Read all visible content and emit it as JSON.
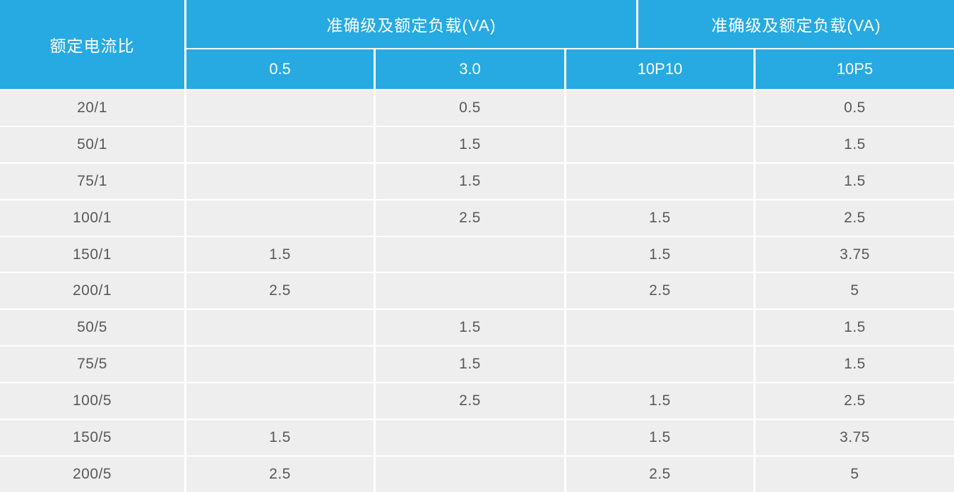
{
  "table": {
    "corner_header": "额定电流比",
    "group_headers": [
      {
        "label": "准确级及额定负载(VA)"
      },
      {
        "label": "准确级及额定负载(VA)"
      }
    ],
    "sub_headers": [
      "0.5",
      "3.0",
      "10P10",
      "10P5"
    ],
    "columns": [
      "ratio",
      "c05",
      "c30",
      "c10p10",
      "c10p5"
    ],
    "rows": [
      {
        "ratio": "20/1",
        "c05": "",
        "c30": "0.5",
        "c10p10": "",
        "c10p5": "0.5"
      },
      {
        "ratio": "50/1",
        "c05": "",
        "c30": "1.5",
        "c10p10": "",
        "c10p5": "1.5"
      },
      {
        "ratio": "75/1",
        "c05": "",
        "c30": "1.5",
        "c10p10": "",
        "c10p5": "1.5"
      },
      {
        "ratio": "100/1",
        "c05": "",
        "c30": "2.5",
        "c10p10": "1.5",
        "c10p5": "2.5"
      },
      {
        "ratio": "150/1",
        "c05": "1.5",
        "c30": "",
        "c10p10": "1.5",
        "c10p5": "3.75"
      },
      {
        "ratio": "200/1",
        "c05": "2.5",
        "c30": "",
        "c10p10": "2.5",
        "c10p5": "5"
      },
      {
        "ratio": "50/5",
        "c05": "",
        "c30": "1.5",
        "c10p10": "",
        "c10p5": "1.5"
      },
      {
        "ratio": "75/5",
        "c05": "",
        "c30": "1.5",
        "c10p10": "",
        "c10p5": "1.5"
      },
      {
        "ratio": "100/5",
        "c05": "",
        "c30": "2.5",
        "c10p10": "1.5",
        "c10p5": "2.5"
      },
      {
        "ratio": "150/5",
        "c05": "1.5",
        "c30": "",
        "c10p10": "1.5",
        "c10p5": "3.75"
      },
      {
        "ratio": "200/5",
        "c05": "2.5",
        "c30": "",
        "c10p10": "2.5",
        "c10p5": "5"
      }
    ],
    "colors": {
      "header_bg": "#26AAE1",
      "header_text": "#FFFFFF",
      "row_bg": "#EEEEEE",
      "body_text": "#58585A",
      "separator": "#FFFFFF"
    }
  }
}
